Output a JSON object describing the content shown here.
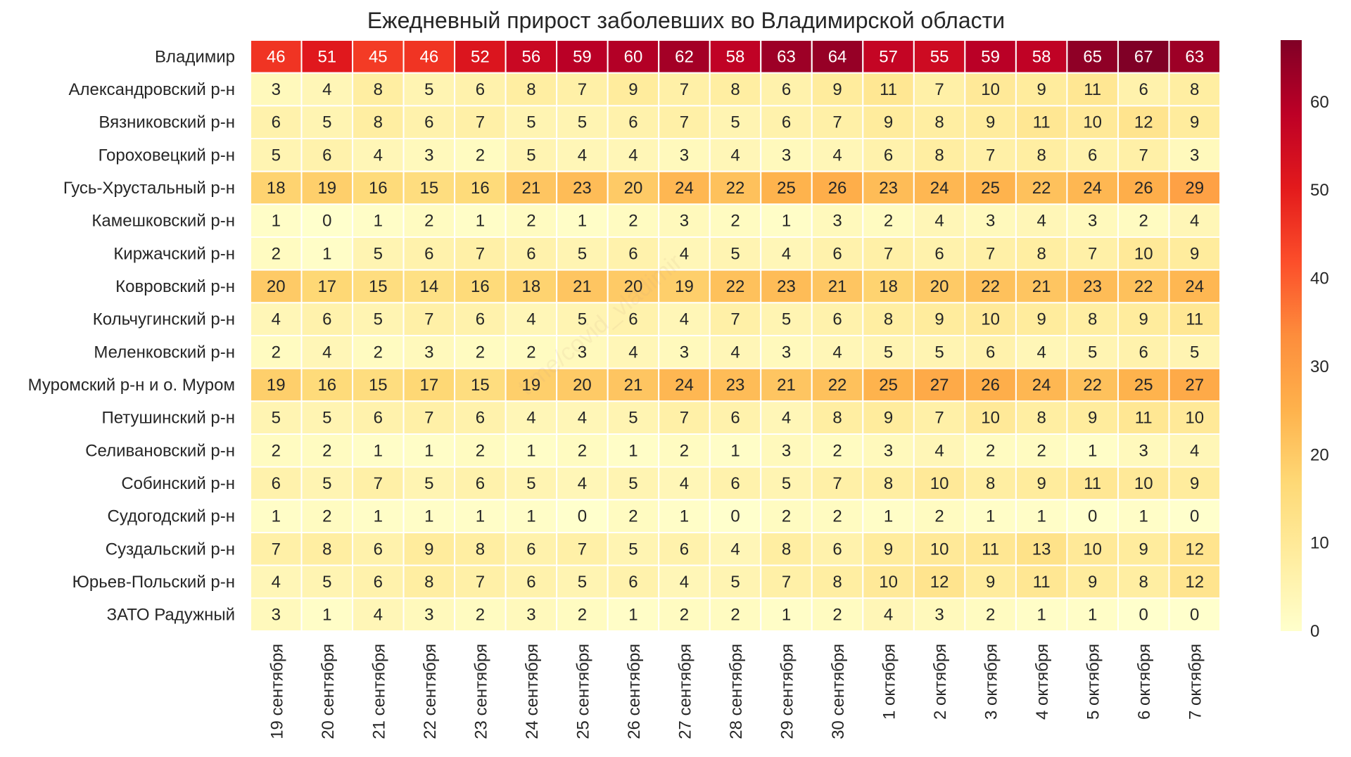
{
  "chart_data": {
    "type": "heatmap",
    "title": "Ежедневный прирост заболевших во Владимирской области",
    "rows": [
      "Владимир",
      "Александровский р-н",
      "Вязниковский р-н",
      "Гороховецкий р-н",
      "Гусь-Хрустальный р-н",
      "Камешковский р-н",
      "Киржачский р-н",
      "Ковровский р-н",
      "Кольчугинский р-н",
      "Меленковский р-н",
      "Муромский р-н и о. Муром",
      "Петушинский р-н",
      "Селивановский р-н",
      "Собинский р-н",
      "Судогодский р-н",
      "Суздальский р-н",
      "Юрьев-Польский р-н",
      "ЗАТО Радужный"
    ],
    "columns": [
      "19 сентября",
      "20 сентября",
      "21 сентября",
      "22 сентября",
      "23 сентября",
      "24 сентября",
      "25 сентября",
      "26 сентября",
      "27 сентября",
      "28 сентября",
      "29 сентября",
      "30 сентября",
      "1 октября",
      "2 октября",
      "3 октября",
      "4 октября",
      "5 октября",
      "6 октября",
      "7 октября"
    ],
    "values": [
      [
        46,
        51,
        45,
        46,
        52,
        56,
        59,
        60,
        62,
        58,
        63,
        64,
        57,
        55,
        59,
        58,
        65,
        67,
        63
      ],
      [
        3,
        4,
        8,
        5,
        6,
        8,
        7,
        9,
        7,
        8,
        6,
        9,
        11,
        7,
        10,
        9,
        11,
        6,
        8
      ],
      [
        6,
        5,
        8,
        6,
        7,
        5,
        5,
        6,
        7,
        5,
        6,
        7,
        9,
        8,
        9,
        11,
        10,
        12,
        9
      ],
      [
        5,
        6,
        4,
        3,
        2,
        5,
        4,
        4,
        3,
        4,
        3,
        4,
        6,
        8,
        7,
        8,
        6,
        7,
        3
      ],
      [
        18,
        19,
        16,
        15,
        16,
        21,
        23,
        20,
        24,
        22,
        25,
        26,
        23,
        24,
        25,
        22,
        24,
        26,
        29
      ],
      [
        1,
        0,
        1,
        2,
        1,
        2,
        1,
        2,
        3,
        2,
        1,
        3,
        2,
        4,
        3,
        4,
        3,
        2,
        4
      ],
      [
        2,
        1,
        5,
        6,
        7,
        6,
        5,
        6,
        4,
        5,
        4,
        6,
        7,
        6,
        7,
        8,
        7,
        10,
        9
      ],
      [
        20,
        17,
        15,
        14,
        16,
        18,
        21,
        20,
        19,
        22,
        23,
        21,
        18,
        20,
        22,
        21,
        23,
        22,
        24
      ],
      [
        4,
        6,
        5,
        7,
        6,
        4,
        5,
        6,
        4,
        7,
        5,
        6,
        8,
        9,
        10,
        9,
        8,
        9,
        11
      ],
      [
        2,
        4,
        2,
        3,
        2,
        2,
        3,
        4,
        3,
        4,
        3,
        4,
        5,
        5,
        6,
        4,
        5,
        6,
        5
      ],
      [
        19,
        16,
        15,
        17,
        15,
        19,
        20,
        21,
        24,
        23,
        21,
        22,
        25,
        27,
        26,
        24,
        22,
        25,
        27
      ],
      [
        5,
        5,
        6,
        7,
        6,
        4,
        4,
        5,
        7,
        6,
        4,
        8,
        9,
        7,
        10,
        8,
        9,
        11,
        10
      ],
      [
        2,
        2,
        1,
        1,
        2,
        1,
        2,
        1,
        2,
        1,
        3,
        2,
        3,
        4,
        2,
        2,
        1,
        3,
        4
      ],
      [
        6,
        5,
        7,
        5,
        6,
        5,
        4,
        5,
        4,
        6,
        5,
        7,
        8,
        10,
        8,
        9,
        11,
        10,
        9
      ],
      [
        1,
        2,
        1,
        1,
        1,
        1,
        0,
        2,
        1,
        0,
        2,
        2,
        1,
        2,
        1,
        1,
        0,
        1,
        0
      ],
      [
        7,
        8,
        6,
        9,
        8,
        6,
        7,
        5,
        6,
        4,
        8,
        6,
        9,
        10,
        11,
        13,
        10,
        9,
        12
      ],
      [
        4,
        5,
        6,
        8,
        7,
        6,
        5,
        6,
        4,
        5,
        7,
        8,
        10,
        12,
        9,
        11,
        9,
        8,
        12
      ],
      [
        3,
        1,
        4,
        3,
        2,
        3,
        2,
        1,
        2,
        2,
        1,
        2,
        4,
        3,
        2,
        1,
        1,
        0,
        0
      ]
    ],
    "colorscale": "YlOrRd",
    "colorscale_stops": [
      "#ffffcc",
      "#ffeda0",
      "#fed976",
      "#feb24c",
      "#fd8d3c",
      "#fc4e2a",
      "#e31a1c",
      "#bd0026",
      "#800026"
    ],
    "vmin": 0,
    "vmax": 67,
    "colorbar_ticks": [
      0,
      10,
      20,
      30,
      40,
      50,
      60
    ],
    "annotated": true,
    "grid": false,
    "watermark": "t.me/covid_vladimir"
  }
}
